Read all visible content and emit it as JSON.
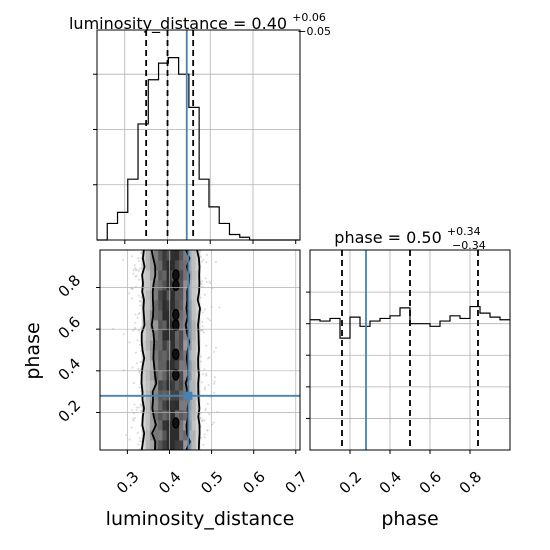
{
  "chart_data": [
    {
      "panel": "luminosity_distance marginal",
      "type": "step-histogram",
      "title": {
        "name": "luminosity_distance = 0.40",
        "sup": "+0.06",
        "sub": "−0.05"
      },
      "xlim": [
        0.235,
        0.71
      ],
      "bin_edges": [
        0.235,
        0.259,
        0.283,
        0.307,
        0.331,
        0.355,
        0.379,
        0.402,
        0.426,
        0.45,
        0.474,
        0.497,
        0.521,
        0.545,
        0.569,
        0.592,
        0.616,
        0.64,
        0.664,
        0.687,
        0.71
      ],
      "counts": [
        0,
        3,
        5,
        11,
        21,
        29,
        32,
        33,
        30,
        24,
        11,
        6,
        3,
        1,
        0.5,
        0,
        0,
        0,
        0,
        0
      ],
      "ymax": 38,
      "quantiles": [
        0.35,
        0.4,
        0.46
      ],
      "truth": 0.445,
      "grid": true
    },
    {
      "panel": "phase marginal",
      "type": "step-histogram",
      "title": {
        "name": "phase = 0.50",
        "sup": "+0.34",
        "sub": "−0.34"
      },
      "xlim": [
        0.0,
        1.0
      ],
      "bin_edges": [
        0.0,
        0.05,
        0.1,
        0.15,
        0.2,
        0.25,
        0.3,
        0.35,
        0.4,
        0.45,
        0.5,
        0.55,
        0.6,
        0.65,
        0.7,
        0.75,
        0.8,
        0.85,
        0.9,
        0.95,
        1.0
      ],
      "counts": [
        49.5,
        49,
        50,
        42.5,
        50.5,
        47,
        49,
        50,
        51,
        54,
        48,
        48,
        47,
        49,
        51,
        50,
        54.5,
        52,
        50.5,
        49.5
      ],
      "ymin": 0,
      "ymax": 76,
      "xticks": [
        0.2,
        0.4,
        0.6,
        0.8
      ],
      "xlabel": "phase",
      "quantiles": [
        0.16,
        0.5,
        0.84
      ],
      "truth": 0.28,
      "grid": true
    },
    {
      "panel": "luminosity_distance vs phase",
      "type": "density-contour",
      "xlim": [
        0.235,
        0.71
      ],
      "ylim": [
        0.02,
        0.98
      ],
      "xticks": [
        0.3,
        0.4,
        0.5,
        0.6,
        0.7
      ],
      "yticks": [
        0.2,
        0.4,
        0.6,
        0.8
      ],
      "xlabel": "luminosity_distance",
      "ylabel": "phase",
      "truth": {
        "x": 0.445,
        "y": 0.28
      },
      "density": {
        "center_x": 0.403,
        "sigma_x": 0.033,
        "uniform_y": true
      },
      "contour_levels": [
        "1-sigma",
        "2-sigma"
      ]
    }
  ],
  "colors": {
    "truth": "#4682b4",
    "histogram": "#000000",
    "grid": "#b0b0b0",
    "scatter": "#bdbdbd"
  }
}
